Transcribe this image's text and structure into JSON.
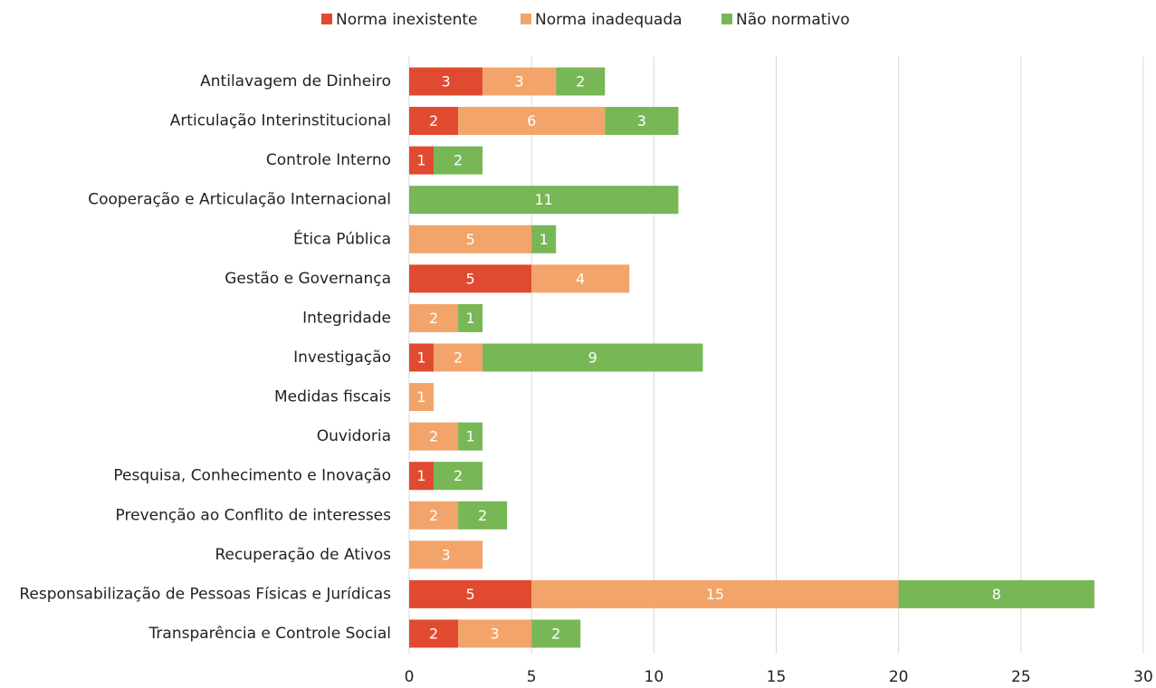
{
  "chart_data": {
    "type": "stacked-barh",
    "categories": [
      "Antilavagem de Dinheiro",
      "Articulação Interinstitucional",
      "Controle Interno",
      "Cooperação e Articulação Internacional",
      "Ética Pública",
      "Gestão e Governança",
      "Integridade",
      "Investigação",
      "Medidas fiscais",
      "Ouvidoria",
      "Pesquisa, Conhecimento e Inovação",
      "Prevenção ao Conflito de interesses",
      "Recuperação de Ativos",
      "Responsabilização de Pessoas Físicas e Jurídicas",
      "Transparência e Controle Social"
    ],
    "series": [
      {
        "name": "Norma inexistente",
        "color": "#e04a30",
        "values": [
          3,
          2,
          1,
          null,
          null,
          5,
          null,
          1,
          null,
          null,
          1,
          null,
          null,
          5,
          2
        ]
      },
      {
        "name": "Norma inadequada",
        "color": "#f3a46b",
        "values": [
          3,
          6,
          null,
          null,
          5,
          4,
          2,
          2,
          1,
          2,
          null,
          2,
          3,
          15,
          3
        ]
      },
      {
        "name": "Não normativo",
        "color": "#77b755",
        "values": [
          2,
          3,
          2,
          11,
          1,
          null,
          1,
          9,
          null,
          1,
          2,
          2,
          null,
          8,
          2
        ]
      }
    ],
    "xlim": [
      0,
      30
    ],
    "xticks": [
      0,
      5,
      10,
      15,
      20,
      25,
      30
    ],
    "grid": true,
    "legend": "top"
  }
}
